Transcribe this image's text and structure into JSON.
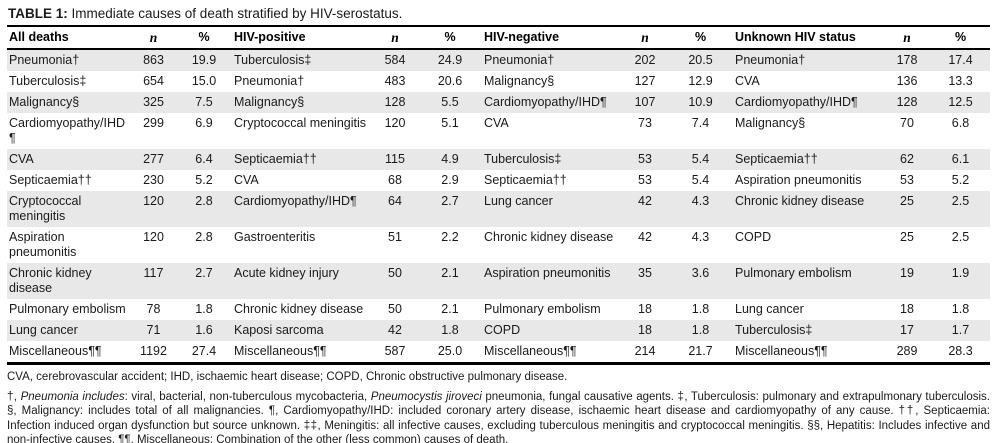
{
  "title": {
    "label": "TABLE 1:",
    "text": " Immediate causes of death stratified by HIV-serostatus."
  },
  "table": {
    "groups": [
      {
        "header": "All deaths",
        "n": "n",
        "pct": "%"
      },
      {
        "header": "HIV-positive",
        "n": "n",
        "pct": "%"
      },
      {
        "header": "HIV-negative",
        "n": "n",
        "pct": "%"
      },
      {
        "header": "Unknown HIV status",
        "n": "n",
        "pct": "%"
      }
    ],
    "rows": [
      [
        [
          "Pneumonia†",
          "863",
          "19.9"
        ],
        [
          "Tuberculosis‡",
          "584",
          "24.9"
        ],
        [
          "Pneumonia†",
          "202",
          "20.5"
        ],
        [
          "Pneumonia†",
          "178",
          "17.4"
        ]
      ],
      [
        [
          "Tuberculosis‡",
          "654",
          "15.0"
        ],
        [
          "Pneumonia†",
          "483",
          "20.6"
        ],
        [
          "Malignancy§",
          "127",
          "12.9"
        ],
        [
          "CVA",
          "136",
          "13.3"
        ]
      ],
      [
        [
          "Malignancy§",
          "325",
          "7.5"
        ],
        [
          "Malignancy§",
          "128",
          "5.5"
        ],
        [
          "Cardiomyopathy/IHD¶",
          "107",
          "10.9"
        ],
        [
          "Cardiomyopathy/IHD¶",
          "128",
          "12.5"
        ]
      ],
      [
        [
          "Cardiomyopathy/IHD¶",
          "299",
          "6.9"
        ],
        [
          "Cryptococcal meningitis",
          "120",
          "5.1"
        ],
        [
          "CVA",
          "73",
          "7.4"
        ],
        [
          "Malignancy§",
          "70",
          "6.8"
        ]
      ],
      [
        [
          "CVA",
          "277",
          "6.4"
        ],
        [
          "Septicaemia††",
          "115",
          "4.9"
        ],
        [
          "Tuberculosis‡",
          "53",
          "5.4"
        ],
        [
          "Septicaemia††",
          "62",
          "6.1"
        ]
      ],
      [
        [
          "Septicaemia††",
          "230",
          "5.2"
        ],
        [
          "CVA",
          "68",
          "2.9"
        ],
        [
          "Septicaemia††",
          "53",
          "5.4"
        ],
        [
          "Aspiration pneumonitis",
          "53",
          "5.2"
        ]
      ],
      [
        [
          "Cryptococcal meningitis",
          "120",
          "2.8"
        ],
        [
          "Cardiomyopathy/IHD¶",
          "64",
          "2.7"
        ],
        [
          "Lung cancer",
          "42",
          "4.3"
        ],
        [
          "Chronic kidney disease",
          "25",
          "2.5"
        ]
      ],
      [
        [
          "Aspiration pneumonitis",
          "120",
          "2.8"
        ],
        [
          "Gastroenteritis",
          "51",
          "2.2"
        ],
        [
          "Chronic kidney disease",
          "42",
          "4.3"
        ],
        [
          "COPD",
          "25",
          "2.5"
        ]
      ],
      [
        [
          "Chronic kidney disease",
          "117",
          "2.7"
        ],
        [
          "Acute kidney injury",
          "50",
          "2.1"
        ],
        [
          "Aspiration pneumonitis",
          "35",
          "3.6"
        ],
        [
          "Pulmonary embolism",
          "19",
          "1.9"
        ]
      ],
      [
        [
          "Pulmonary embolism",
          "78",
          "1.8"
        ],
        [
          "Chronic kidney disease",
          "50",
          "2.1"
        ],
        [
          "Pulmonary embolism",
          "18",
          "1.8"
        ],
        [
          "Lung cancer",
          "18",
          "1.8"
        ]
      ],
      [
        [
          "Lung cancer",
          "71",
          "1.6"
        ],
        [
          "Kaposi sarcoma",
          "42",
          "1.8"
        ],
        [
          "COPD",
          "18",
          "1.8"
        ],
        [
          "Tuberculosis‡",
          "17",
          "1.7"
        ]
      ],
      [
        [
          "Miscellaneous¶¶",
          "1192",
          "27.4"
        ],
        [
          "Miscellaneous¶¶",
          "587",
          "25.0"
        ],
        [
          "Miscellaneous¶¶",
          "214",
          "21.7"
        ],
        [
          "Miscellaneous¶¶",
          "289",
          "28.3"
        ]
      ]
    ]
  },
  "footnotes": {
    "abbreviations": "CVA, cerebrovascular accident; IHD, ischaemic heart disease; COPD, Chronic obstructive pulmonary disease.",
    "definitions": [
      {
        "text": "†, ",
        "italic": false
      },
      {
        "text": "Pneumonia includes",
        "italic": true
      },
      {
        "text": ": viral, bacterial, non-tuberculous mycobacteria, ",
        "italic": false
      },
      {
        "text": "Pneumocystis jiroveci",
        "italic": true
      },
      {
        "text": " pneumonia, fungal causative agents. ‡, Tuberculosis: pulmonary and extrapulmonary tuberculosis. §, Malignancy: includes total of all malignancies. ¶, Cardiomyopathy/IHD: included coronary artery disease, ischaemic heart disease and cardiomyopathy of any cause. ††, Septicaemia: Infection induced organ dysfunction but source unknown. ‡‡, Meningitis: all infective causes, excluding tuberculous meningitis and cryptococcal meningitis. §§, Hepatitis: Includes infective and non-infective causes. ¶¶, Miscellaneous: Combination of the other (less common) causes of death.",
        "italic": false
      }
    ]
  },
  "colors": {
    "row_stripe": "#e8e8e8",
    "rule_line": "#000000",
    "text": "#1a1a1a"
  }
}
